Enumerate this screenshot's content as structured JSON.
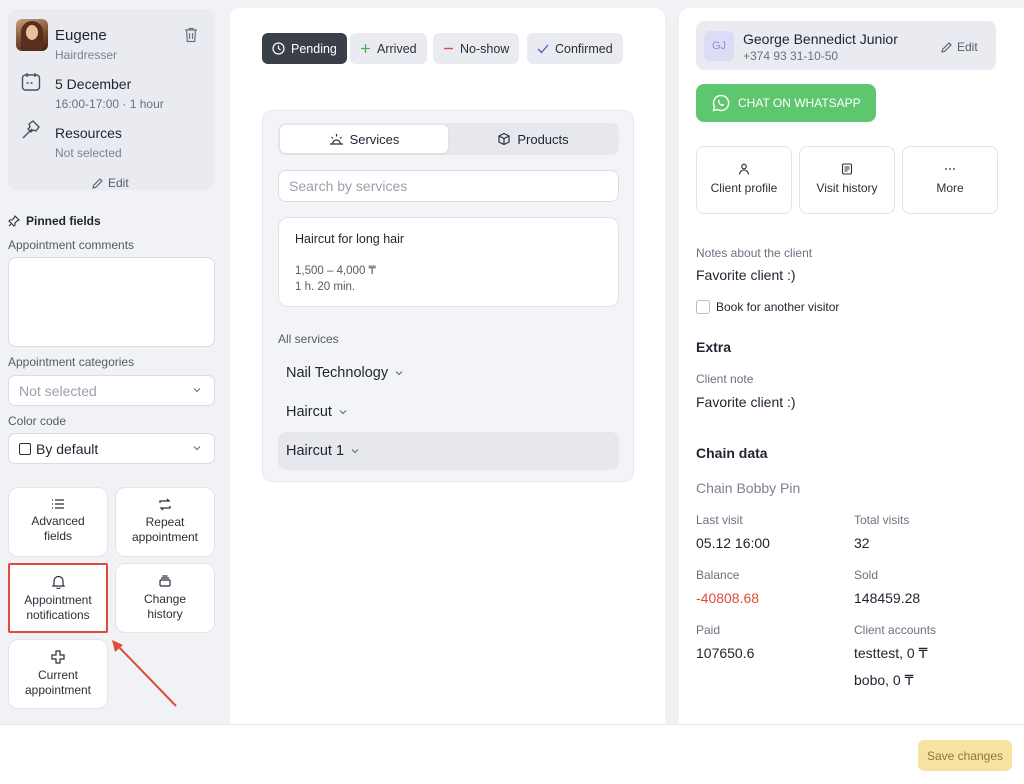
{
  "staff": {
    "name": "Eugene",
    "role": "Hairdresser"
  },
  "appointment": {
    "date": "5 December",
    "time": "16:00-17:00 · 1 hour"
  },
  "resources": {
    "label": "Resources",
    "value": "Not selected"
  },
  "info_edit": "Edit",
  "pinned_title": "Pinned fields",
  "comments_label": "Appointment comments",
  "categories_label": "Appointment categories",
  "categories_value": "Not selected",
  "color_label": "Color code",
  "color_value": "By default",
  "tiles": {
    "advanced": "Advanced fields",
    "repeat": "Repeat appointment",
    "notifications": "Appointment notifications",
    "history": "Change history",
    "current": "Current appointment"
  },
  "statuses": {
    "pending": "Pending",
    "arrived": "Arrived",
    "noshow": "No-show",
    "confirmed": "Confirmed"
  },
  "tabs": {
    "services": "Services",
    "products": "Products"
  },
  "search_placeholder": "Search by services",
  "service": {
    "name": "Haircut for long hair",
    "price": "1,500 – 4,000 ₸",
    "duration": "1 h. 20 min."
  },
  "all_services_label": "All services",
  "categories": [
    "Nail Technology",
    "Haircut",
    "Haircut 1"
  ],
  "client": {
    "initials": "GJ",
    "name": "George Bennedict Junior",
    "phone": "+374 93 31-10-50",
    "edit": "Edit"
  },
  "whatsapp_label": "CHAT ON WHATSAPP",
  "client_actions": {
    "profile": "Client profile",
    "visits": "Visit history",
    "more": "More"
  },
  "notes_label": "Notes about the client",
  "notes_value": "Favorite client :)",
  "book_other": "Book for another visitor",
  "extra_title": "Extra",
  "client_note_label": "Client note",
  "client_note_value": "Favorite client :)",
  "chain_title": "Chain data",
  "chain_name": "Chain Bobby Pin",
  "stats": {
    "last_visit_label": "Last visit",
    "last_visit": "05.12 16:00",
    "total_visits_label": "Total visits",
    "total_visits": "32",
    "balance_label": "Balance",
    "balance": "-40808.68",
    "sold_label": "Sold",
    "sold": "148459.28",
    "paid_label": "Paid",
    "paid": "107650.6",
    "accounts_label": "Client accounts",
    "account_1": "testtest, 0 ₸",
    "account_2": "bobo, 0 ₸"
  },
  "save_label": "Save changes",
  "colors": {
    "whatsapp": "#5dc66e",
    "negative": "#e04a3a",
    "highlight": "#e04a3a",
    "save_bg": "#f6e3a1"
  }
}
